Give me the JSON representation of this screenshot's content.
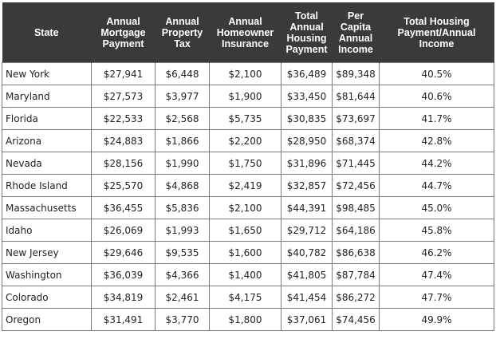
{
  "table": {
    "headers": [
      "State",
      "Annual Mortgage Payment",
      "Annual Property Tax",
      "Annual Homeowner Insurance",
      "Total Annual Housing Payment",
      "Per Capita Annual Income",
      "Total Housing Payment/Annual Income"
    ],
    "rows": [
      [
        "New York",
        "$27,941",
        "$6,448",
        "$2,100",
        "$36,489",
        "$89,348",
        "40.5%"
      ],
      [
        "Maryland",
        "$27,573",
        "$3,977",
        "$1,900",
        "$33,450",
        "$81,644",
        "40.6%"
      ],
      [
        "Florida",
        "$22,533",
        "$2,568",
        "$5,735",
        "$30,835",
        "$73,697",
        "41.7%"
      ],
      [
        "Arizona",
        "$24,883",
        "$1,866",
        "$2,200",
        "$28,950",
        "$68,374",
        "42.8%"
      ],
      [
        "Nevada",
        "$28,156",
        "$1,990",
        "$1,750",
        "$31,896",
        "$71,445",
        "44.2%"
      ],
      [
        "Rhode Island",
        "$25,570",
        "$4,868",
        "$2,419",
        "$32,857",
        "$72,456",
        "44.7%"
      ],
      [
        "Massachusetts",
        "$36,455",
        "$5,836",
        "$2,100",
        "$44,391",
        "$98,485",
        "45.0%"
      ],
      [
        "Idaho",
        "$26,069",
        "$1,993",
        "$1,650",
        "$29,712",
        "$64,186",
        "45.8%"
      ],
      [
        "New Jersey",
        "$29,646",
        "$9,535",
        "$1,600",
        "$40,782",
        "$86,638",
        "46.2%"
      ],
      [
        "Washington",
        "$36,039",
        "$4,366",
        "$1,400",
        "$41,805",
        "$87,784",
        "47.4%"
      ],
      [
        "Colorado",
        "$34,819",
        "$2,461",
        "$4,175",
        "$41,454",
        "$86,272",
        "47.7%"
      ],
      [
        "Oregon",
        "$31,491",
        "$3,770",
        "$1,800",
        "$37,061",
        "$74,456",
        "49.9%"
      ]
    ]
  }
}
